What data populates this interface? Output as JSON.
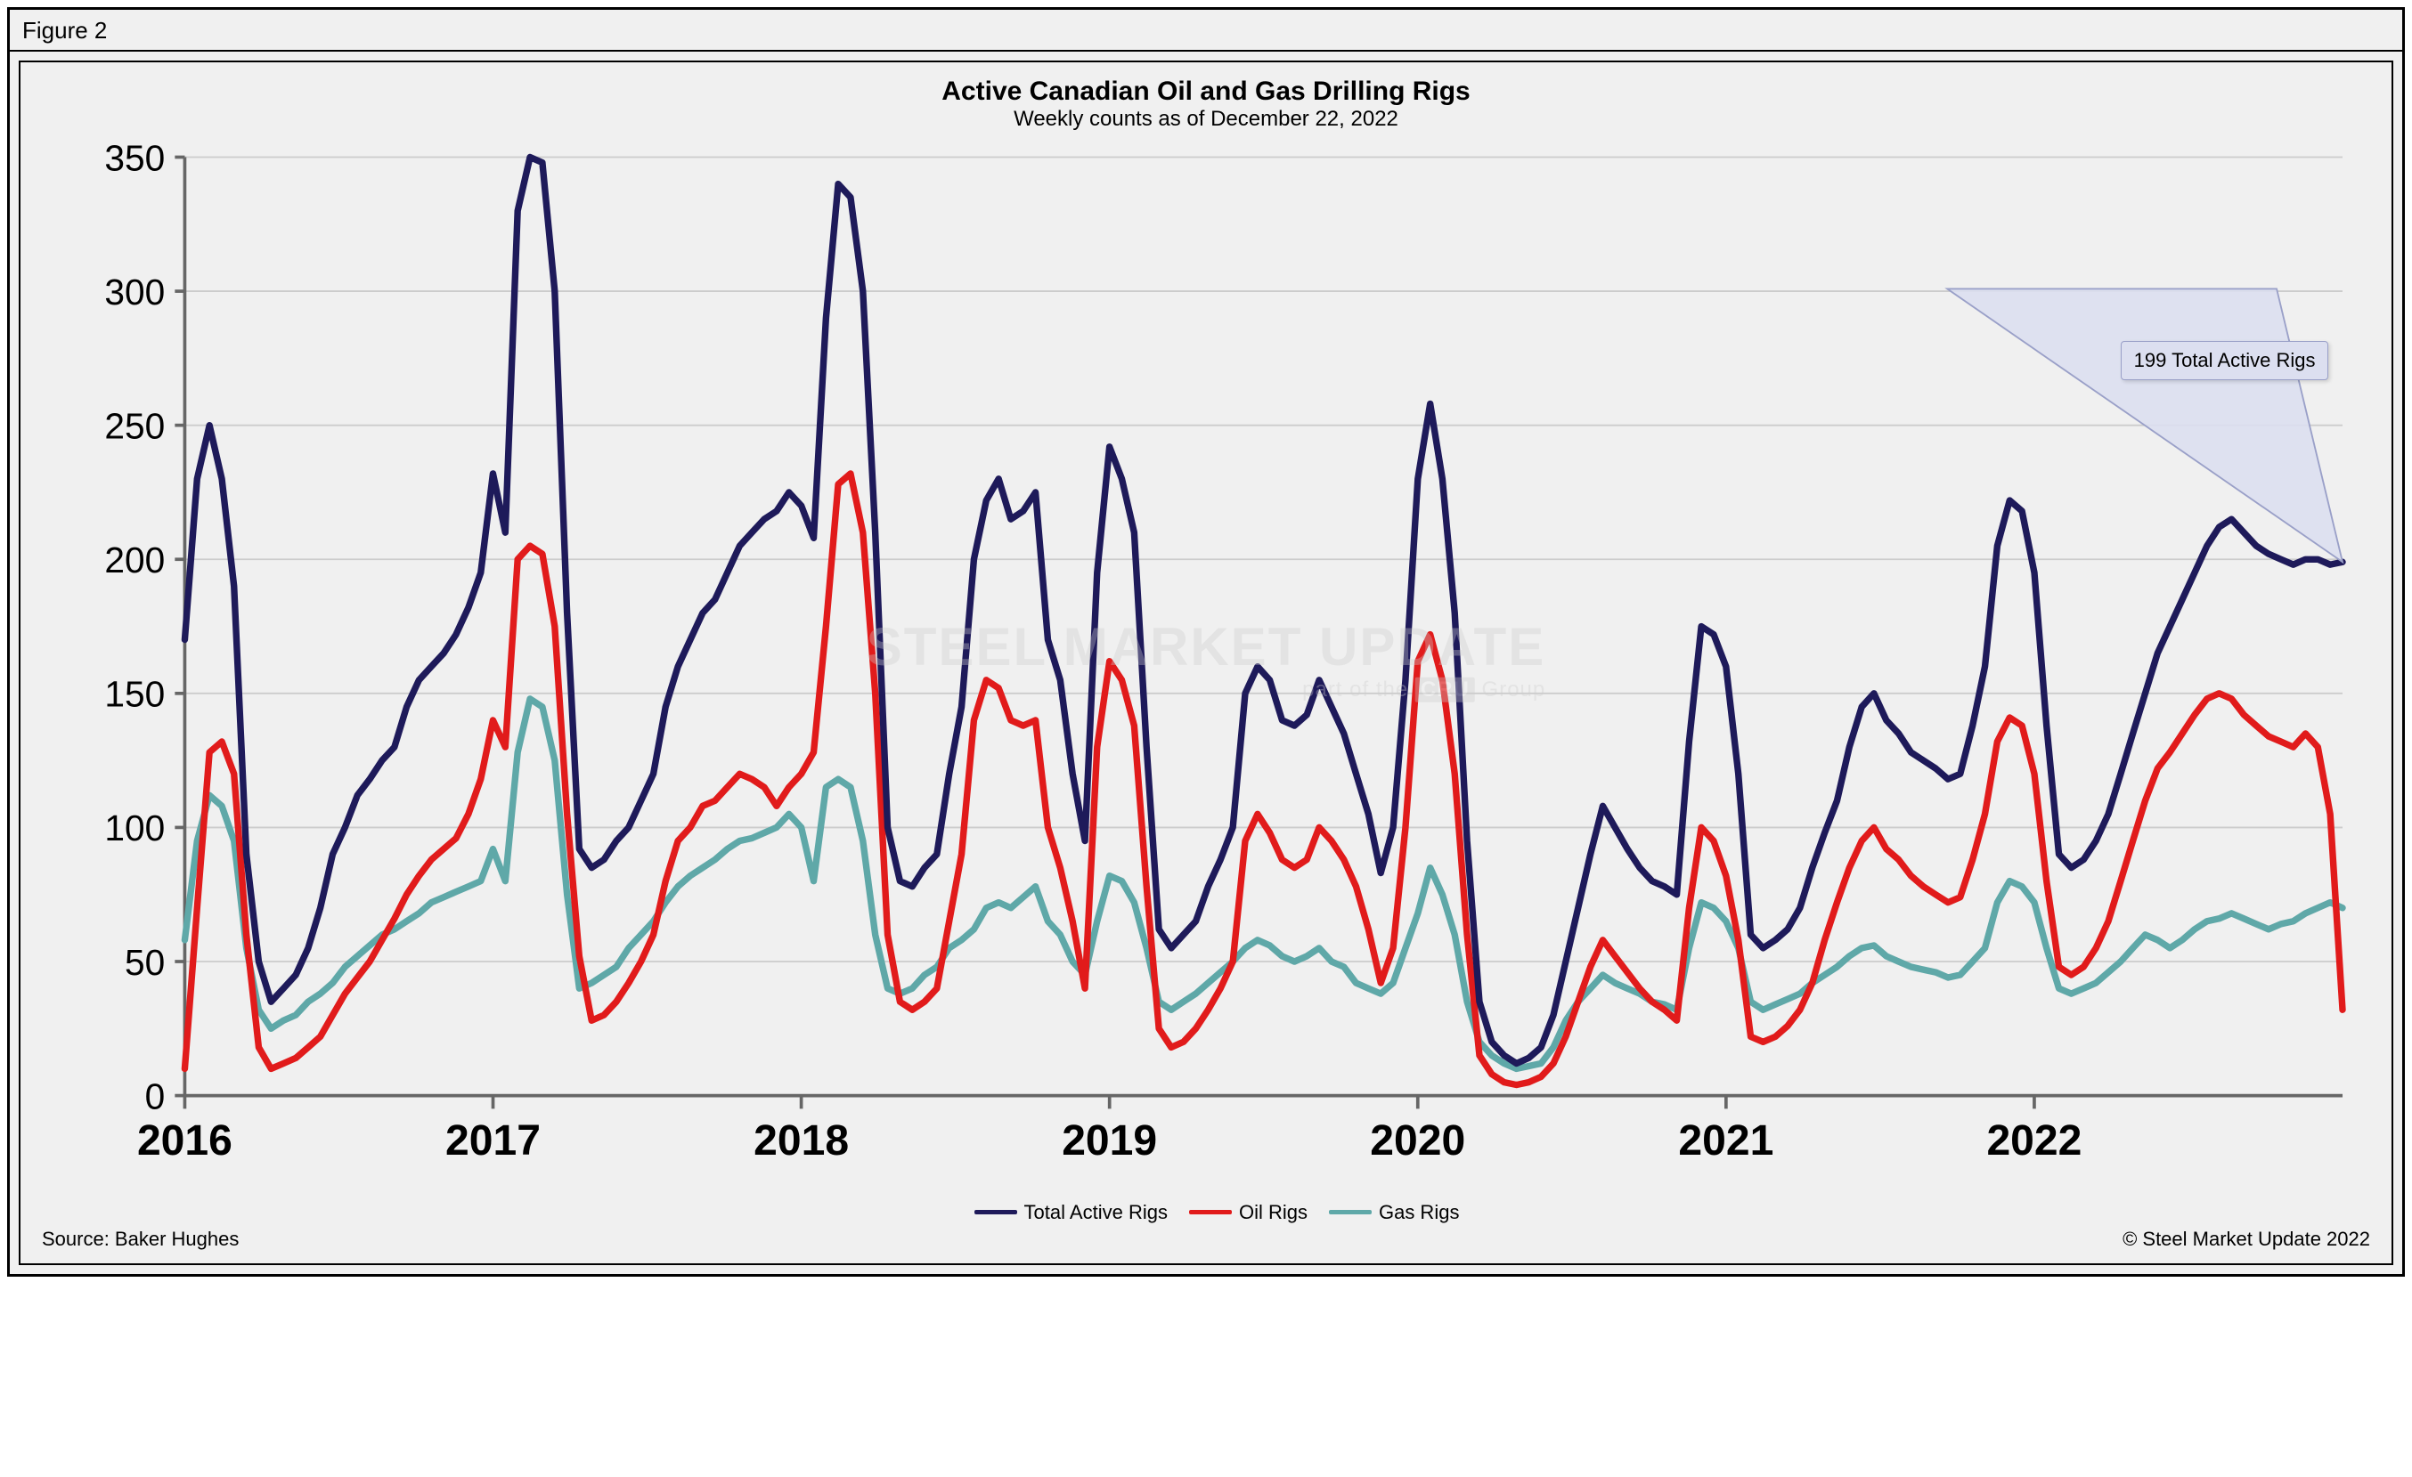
{
  "figure_label": "Figure 2",
  "title": "Active Canadian Oil and Gas Drilling Rigs",
  "subtitle": "Weekly counts as of December 22, 2022",
  "source": "Source: Baker Hughes",
  "copyright": "© Steel Market Update 2022",
  "callout": "199 Total Active Rigs",
  "watermark_main": "STEEL MARKET UPDATE",
  "watermark_sub_prefix": "part of the ",
  "watermark_sub_suffix": " Group",
  "watermark_cru": "CRU",
  "legend": {
    "items": [
      {
        "label": "Total Active Rigs",
        "color": "#1e1a5a"
      },
      {
        "label": "Oil Rigs",
        "color": "#e11b1b"
      },
      {
        "label": "Gas Rigs",
        "color": "#5fa8a8"
      }
    ]
  },
  "chart": {
    "type": "line",
    "background_color": "#f0f0f0",
    "grid_color": "#cccccc",
    "axis_color": "#666666",
    "tick_font_size": 22,
    "xtick_font_size": 26,
    "line_width": 4,
    "ylim": [
      0,
      350
    ],
    "ytick_step": 50,
    "x_years": [
      2016,
      2017,
      2018,
      2019,
      2020,
      2021,
      2022,
      2023
    ],
    "x_labels": [
      "2016",
      "2017",
      "2018",
      "2019",
      "2020",
      "2021",
      "2022"
    ],
    "series": {
      "total": {
        "color": "#1e1a5a",
        "values": [
          170,
          230,
          250,
          230,
          190,
          90,
          50,
          35,
          40,
          45,
          55,
          70,
          90,
          100,
          112,
          118,
          125,
          130,
          145,
          155,
          160,
          165,
          172,
          182,
          195,
          232,
          210,
          330,
          350,
          348,
          300,
          180,
          92,
          85,
          88,
          95,
          100,
          110,
          120,
          145,
          160,
          170,
          180,
          185,
          195,
          205,
          210,
          215,
          218,
          225,
          220,
          208,
          290,
          340,
          335,
          300,
          210,
          100,
          80,
          78,
          85,
          90,
          120,
          145,
          200,
          222,
          230,
          215,
          218,
          225,
          170,
          155,
          120,
          95,
          195,
          242,
          230,
          210,
          130,
          62,
          55,
          60,
          65,
          78,
          88,
          100,
          150,
          160,
          155,
          140,
          138,
          142,
          155,
          145,
          135,
          120,
          105,
          83,
          100,
          155,
          230,
          258,
          230,
          180,
          95,
          35,
          20,
          15,
          12,
          14,
          18,
          30,
          50,
          70,
          90,
          108,
          100,
          92,
          85,
          80,
          78,
          75,
          132,
          175,
          172,
          160,
          120,
          60,
          55,
          58,
          62,
          70,
          85,
          98,
          110,
          130,
          145,
          150,
          140,
          135,
          128,
          125,
          122,
          118,
          120,
          138,
          160,
          205,
          222,
          218,
          195,
          138,
          90,
          85,
          88,
          95,
          105,
          120,
          135,
          150,
          165,
          175,
          185,
          195,
          205,
          212,
          215,
          210,
          205,
          202,
          200,
          198,
          200,
          200,
          198,
          199
        ]
      },
      "oil": {
        "color": "#e11b1b",
        "values": [
          10,
          70,
          128,
          132,
          120,
          60,
          18,
          10,
          12,
          14,
          18,
          22,
          30,
          38,
          44,
          50,
          58,
          66,
          75,
          82,
          88,
          92,
          96,
          105,
          118,
          140,
          130,
          200,
          205,
          202,
          175,
          105,
          52,
          28,
          30,
          35,
          42,
          50,
          60,
          80,
          95,
          100,
          108,
          110,
          115,
          120,
          118,
          115,
          108,
          115,
          120,
          128,
          175,
          228,
          232,
          210,
          150,
          60,
          35,
          32,
          35,
          40,
          65,
          90,
          140,
          155,
          152,
          140,
          138,
          140,
          100,
          85,
          65,
          40,
          130,
          162,
          155,
          138,
          78,
          25,
          18,
          20,
          25,
          32,
          40,
          50,
          95,
          105,
          98,
          88,
          85,
          88,
          100,
          95,
          88,
          78,
          62,
          42,
          55,
          100,
          162,
          172,
          155,
          120,
          60,
          15,
          8,
          5,
          4,
          5,
          7,
          12,
          22,
          35,
          48,
          58,
          52,
          46,
          40,
          35,
          32,
          28,
          70,
          100,
          95,
          82,
          58,
          22,
          20,
          22,
          26,
          32,
          42,
          58,
          72,
          85,
          95,
          100,
          92,
          88,
          82,
          78,
          75,
          72,
          74,
          88,
          105,
          132,
          141,
          138,
          120,
          80,
          48,
          45,
          48,
          55,
          65,
          80,
          95,
          110,
          122,
          128,
          135,
          142,
          148,
          150,
          148,
          142,
          138,
          134,
          132,
          130,
          135,
          130,
          105,
          32
        ]
      },
      "gas": {
        "color": "#5fa8a8",
        "values": [
          58,
          95,
          112,
          108,
          95,
          55,
          32,
          25,
          28,
          30,
          35,
          38,
          42,
          48,
          52,
          56,
          60,
          62,
          65,
          68,
          72,
          74,
          76,
          78,
          80,
          92,
          80,
          128,
          148,
          145,
          125,
          75,
          40,
          42,
          45,
          48,
          55,
          60,
          65,
          72,
          78,
          82,
          85,
          88,
          92,
          95,
          96,
          98,
          100,
          105,
          100,
          80,
          115,
          118,
          115,
          95,
          60,
          40,
          38,
          40,
          45,
          48,
          55,
          58,
          62,
          70,
          72,
          70,
          74,
          78,
          65,
          60,
          50,
          45,
          65,
          82,
          80,
          72,
          55,
          35,
          32,
          35,
          38,
          42,
          46,
          50,
          55,
          58,
          56,
          52,
          50,
          52,
          55,
          50,
          48,
          42,
          40,
          38,
          42,
          55,
          68,
          85,
          75,
          60,
          35,
          20,
          15,
          12,
          10,
          11,
          12,
          18,
          28,
          35,
          40,
          45,
          42,
          40,
          38,
          35,
          34,
          32,
          55,
          72,
          70,
          65,
          55,
          35,
          32,
          34,
          36,
          38,
          42,
          45,
          48,
          52,
          55,
          56,
          52,
          50,
          48,
          47,
          46,
          44,
          45,
          50,
          55,
          72,
          80,
          78,
          72,
          55,
          40,
          38,
          40,
          42,
          46,
          50,
          55,
          60,
          58,
          55,
          58,
          62,
          65,
          66,
          68,
          66,
          64,
          62,
          64,
          65,
          68,
          70,
          72,
          70
        ]
      }
    },
    "callout_point_index": 175,
    "callout_box": {
      "right_pct": 2,
      "top_pct": 19
    }
  }
}
